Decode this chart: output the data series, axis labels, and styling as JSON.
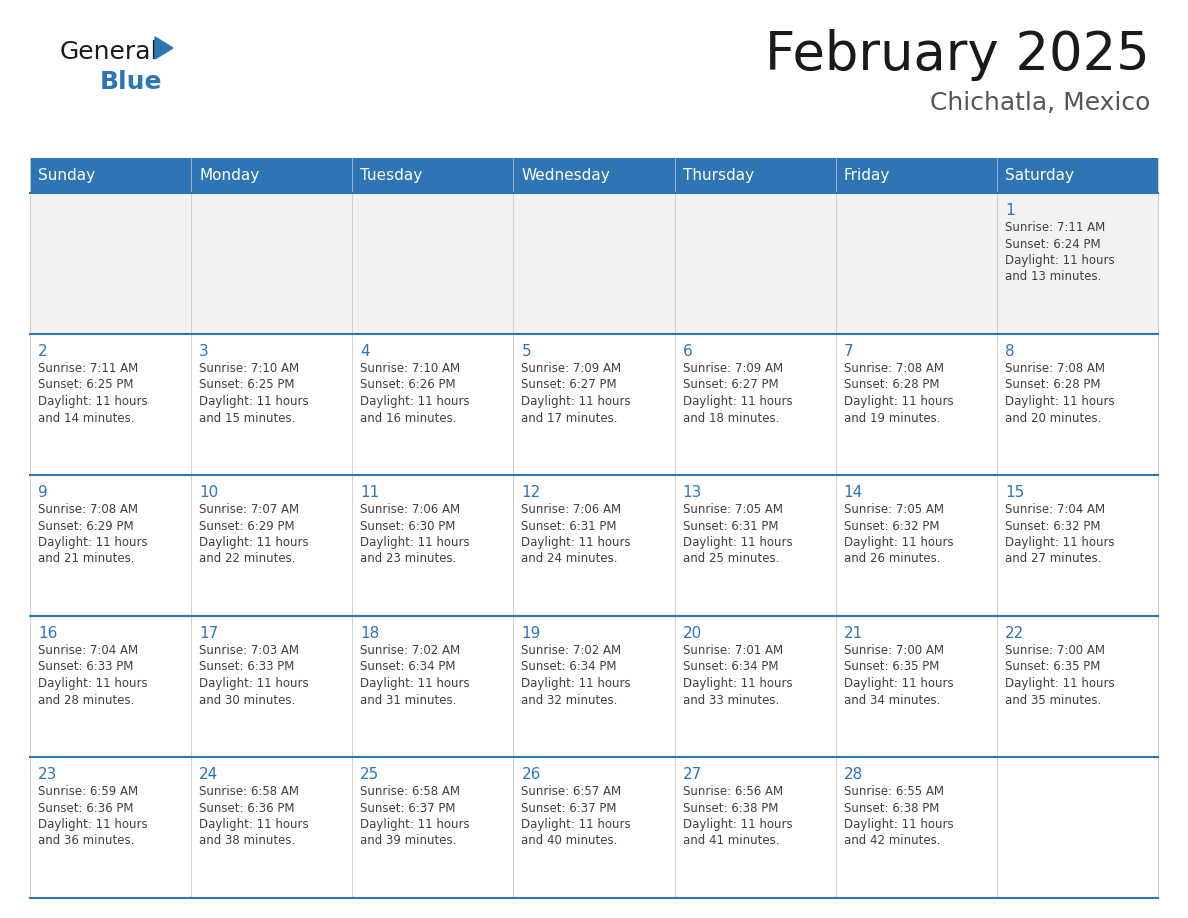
{
  "title": "February 2025",
  "subtitle": "Chichatla, Mexico",
  "days_of_week": [
    "Sunday",
    "Monday",
    "Tuesday",
    "Wednesday",
    "Thursday",
    "Friday",
    "Saturday"
  ],
  "header_bg_color": "#2E75B6",
  "header_text_color": "#FFFFFF",
  "cell_bg_white": "#FFFFFF",
  "cell_bg_gray": "#F2F2F2",
  "border_color": "#2E75B6",
  "row_divider_color": "#AAAAAA",
  "day_number_color": "#2E75B6",
  "cell_text_color": "#404040",
  "title_color": "#1a1a1a",
  "subtitle_color": "#555555",
  "calendar_data": [
    [
      null,
      null,
      null,
      null,
      null,
      null,
      1
    ],
    [
      2,
      3,
      4,
      5,
      6,
      7,
      8
    ],
    [
      9,
      10,
      11,
      12,
      13,
      14,
      15
    ],
    [
      16,
      17,
      18,
      19,
      20,
      21,
      22
    ],
    [
      23,
      24,
      25,
      26,
      27,
      28,
      null
    ]
  ],
  "sunrise_data": {
    "1": "7:11 AM",
    "2": "7:11 AM",
    "3": "7:10 AM",
    "4": "7:10 AM",
    "5": "7:09 AM",
    "6": "7:09 AM",
    "7": "7:08 AM",
    "8": "7:08 AM",
    "9": "7:08 AM",
    "10": "7:07 AM",
    "11": "7:06 AM",
    "12": "7:06 AM",
    "13": "7:05 AM",
    "14": "7:05 AM",
    "15": "7:04 AM",
    "16": "7:04 AM",
    "17": "7:03 AM",
    "18": "7:02 AM",
    "19": "7:02 AM",
    "20": "7:01 AM",
    "21": "7:00 AM",
    "22": "7:00 AM",
    "23": "6:59 AM",
    "24": "6:58 AM",
    "25": "6:58 AM",
    "26": "6:57 AM",
    "27": "6:56 AM",
    "28": "6:55 AM"
  },
  "sunset_data": {
    "1": "6:24 PM",
    "2": "6:25 PM",
    "3": "6:25 PM",
    "4": "6:26 PM",
    "5": "6:27 PM",
    "6": "6:27 PM",
    "7": "6:28 PM",
    "8": "6:28 PM",
    "9": "6:29 PM",
    "10": "6:29 PM",
    "11": "6:30 PM",
    "12": "6:31 PM",
    "13": "6:31 PM",
    "14": "6:32 PM",
    "15": "6:32 PM",
    "16": "6:33 PM",
    "17": "6:33 PM",
    "18": "6:34 PM",
    "19": "6:34 PM",
    "20": "6:34 PM",
    "21": "6:35 PM",
    "22": "6:35 PM",
    "23": "6:36 PM",
    "24": "6:36 PM",
    "25": "6:37 PM",
    "26": "6:37 PM",
    "27": "6:38 PM",
    "28": "6:38 PM"
  },
  "daylight_minutes": {
    "1": 13,
    "2": 14,
    "3": 15,
    "4": 16,
    "5": 17,
    "6": 18,
    "7": 19,
    "8": 20,
    "9": 21,
    "10": 22,
    "11": 23,
    "12": 24,
    "13": 25,
    "14": 26,
    "15": 27,
    "16": 28,
    "17": 30,
    "18": 31,
    "19": 32,
    "20": 33,
    "21": 34,
    "22": 35,
    "23": 36,
    "24": 38,
    "25": 39,
    "26": 40,
    "27": 41,
    "28": 42
  },
  "logo_text_general": "General",
  "logo_text_blue": "Blue",
  "logo_triangle_color": "#2E75B6"
}
